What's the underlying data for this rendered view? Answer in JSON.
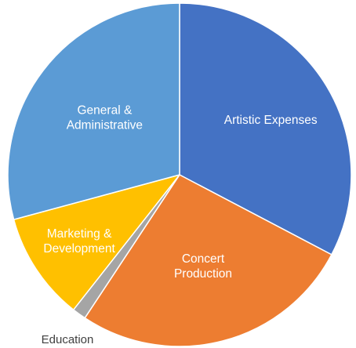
{
  "chart_data": {
    "type": "pie",
    "slices": [
      {
        "label": [
          "Artistic Expenses"
        ],
        "value": 32.7,
        "color": "#4472C4",
        "label_position": "inside"
      },
      {
        "label": [
          "Concert",
          "Production"
        ],
        "value": 26.6,
        "color": "#ED7D31",
        "label_position": "inside"
      },
      {
        "label": [
          "Education"
        ],
        "value": 1.3,
        "color": "#A5A5A5",
        "label_position": "outside"
      },
      {
        "label": [
          "Marketing &",
          "Development"
        ],
        "value": 10.2,
        "color": "#FFC000",
        "label_position": "inside"
      },
      {
        "label": [
          "General &",
          "Administrative"
        ],
        "value": 29.2,
        "color": "#5B9BD5",
        "label_position": "inside"
      }
    ],
    "start_angle": "top",
    "direction": "clockwise",
    "legend": "none"
  }
}
